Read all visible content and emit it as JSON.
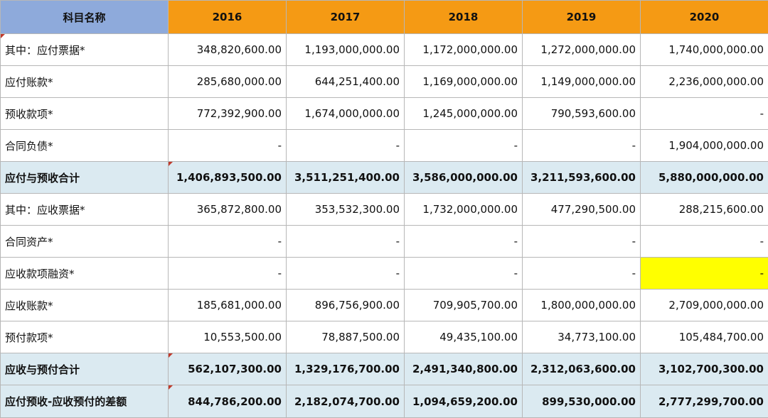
{
  "header": {
    "name": "科目名称",
    "years": [
      "2016",
      "2017",
      "2018",
      "2019",
      "2020"
    ]
  },
  "rows": [
    {
      "label": "其中：应付票据*",
      "values": [
        "348,820,600.00",
        "1,193,000,000.00",
        "1,172,000,000.00",
        "1,272,000,000.00",
        "1,740,000,000.00"
      ]
    },
    {
      "label": "应付账款*",
      "values": [
        "285,680,000.00",
        "644,251,400.00",
        "1,169,000,000.00",
        "1,149,000,000.00",
        "2,236,000,000.00"
      ]
    },
    {
      "label": "预收款项*",
      "values": [
        "772,392,900.00",
        "1,674,000,000.00",
        "1,245,000,000.00",
        "790,593,600.00",
        "-"
      ]
    },
    {
      "label": "合同负债*",
      "values": [
        "-",
        "-",
        "-",
        "-",
        "1,904,000,000.00"
      ]
    },
    {
      "label": "应付与预收合计",
      "values": [
        "1,406,893,500.00",
        "3,511,251,400.00",
        "3,586,000,000.00",
        "3,211,593,600.00",
        "5,880,000,000.00"
      ]
    },
    {
      "label": "其中：应收票据*",
      "values": [
        "365,872,800.00",
        "353,532,300.00",
        "1,732,000,000.00",
        "477,290,500.00",
        "288,215,600.00"
      ]
    },
    {
      "label": "合同资产*",
      "values": [
        "-",
        "-",
        "-",
        "-",
        "-"
      ]
    },
    {
      "label": "应收款项融资*",
      "values": [
        "-",
        "-",
        "-",
        "-",
        "-"
      ]
    },
    {
      "label": "应收账款*",
      "values": [
        "185,681,000.00",
        "896,756,900.00",
        "709,905,700.00",
        "1,800,000,000.00",
        "2,709,000,000.00"
      ]
    },
    {
      "label": "预付款项*",
      "values": [
        "10,553,500.00",
        "78,887,500.00",
        "49,435,100.00",
        "34,773,100.00",
        "105,484,700.00"
      ]
    },
    {
      "label": "应收与预付合计",
      "values": [
        "562,107,300.00",
        "1,329,176,700.00",
        "2,491,340,800.00",
        "2,312,063,600.00",
        "3,102,700,300.00"
      ]
    },
    {
      "label": "应付预收-应收预付的差额",
      "values": [
        "844,786,200.00",
        "2,182,074,700.00",
        "1,094,659,200.00",
        "899,530,000.00",
        "2,777,299,700.00"
      ]
    }
  ],
  "colors": {
    "header_name_bg": "#8eaadb",
    "header_year_bg": "#f59a14",
    "total_row_bg": "#dbeaf1",
    "highlight_cell_bg": "#ffff00",
    "comment_marker": "#c0392b"
  }
}
